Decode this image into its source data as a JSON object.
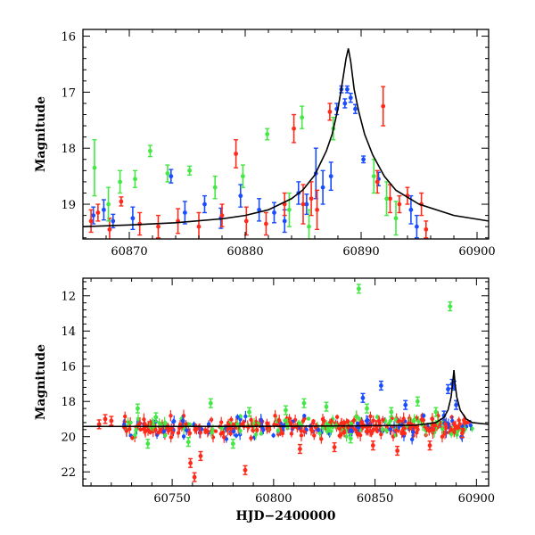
{
  "chart_data": [
    {
      "type": "scatter",
      "title": "",
      "xlabel": "",
      "ylabel": "Magnitude",
      "xlim": [
        60866,
        60901
      ],
      "ylim": [
        19.62,
        15.88
      ],
      "y_inverted": true,
      "xticks": [
        60870,
        60880,
        60890,
        60900
      ],
      "yticks": [
        16,
        17,
        18,
        19
      ],
      "grid": false,
      "colors": {
        "blue": "#1a4cff",
        "red": "#ff2a1a",
        "green": "#44e844",
        "model": "#000000"
      },
      "model_curve": {
        "name": "",
        "x": [
          60866,
          60870,
          60874,
          60878,
          60880,
          60882,
          60884,
          60885,
          60886,
          60887,
          60887.5,
          60888,
          60888.4,
          60888.7,
          60888.9,
          60889.1,
          60889.4,
          60889.8,
          60890.3,
          60891,
          60892,
          60893,
          60895,
          60898,
          60901
        ],
        "y": [
          19.4,
          19.37,
          19.33,
          19.26,
          19.2,
          19.1,
          18.9,
          18.74,
          18.48,
          18.05,
          17.75,
          17.3,
          16.8,
          16.4,
          16.22,
          16.45,
          16.95,
          17.35,
          17.75,
          18.12,
          18.5,
          18.75,
          19.0,
          19.2,
          19.3
        ]
      },
      "series": [
        {
          "color": "blue",
          "points": [
            {
              "x": 60866.9,
              "y": 19.2,
              "e": 0.15
            },
            {
              "x": 60867.8,
              "y": 19.1,
              "e": 0.18
            },
            {
              "x": 60868.6,
              "y": 19.3,
              "e": 0.12
            },
            {
              "x": 60870.3,
              "y": 19.25,
              "e": 0.2
            },
            {
              "x": 60873.6,
              "y": 18.5,
              "e": 0.12
            },
            {
              "x": 60874.8,
              "y": 19.15,
              "e": 0.2
            },
            {
              "x": 60876.5,
              "y": 19.0,
              "e": 0.15
            },
            {
              "x": 60877.9,
              "y": 19.25,
              "e": 0.18
            },
            {
              "x": 60879.6,
              "y": 18.85,
              "e": 0.2
            },
            {
              "x": 60881.2,
              "y": 19.1,
              "e": 0.2
            },
            {
              "x": 60882.5,
              "y": 19.15,
              "e": 0.18
            },
            {
              "x": 60883.4,
              "y": 19.3,
              "e": 0.2
            },
            {
              "x": 60884.6,
              "y": 18.8,
              "e": 0.2
            },
            {
              "x": 60885.3,
              "y": 19.0,
              "e": 0.18
            },
            {
              "x": 60886.1,
              "y": 18.45,
              "e": 0.45
            },
            {
              "x": 60886.7,
              "y": 18.7,
              "e": 0.3
            },
            {
              "x": 60887.4,
              "y": 18.5,
              "e": 0.25
            },
            {
              "x": 60887.9,
              "y": 17.3,
              "e": 0.1
            },
            {
              "x": 60888.3,
              "y": 16.95,
              "e": 0.06
            },
            {
              "x": 60888.6,
              "y": 17.2,
              "e": 0.08
            },
            {
              "x": 60888.8,
              "y": 16.95,
              "e": 0.06
            },
            {
              "x": 60889.1,
              "y": 17.1,
              "e": 0.08
            },
            {
              "x": 60889.5,
              "y": 17.3,
              "e": 0.08
            },
            {
              "x": 60890.2,
              "y": 18.2,
              "e": 0.06
            },
            {
              "x": 60891.5,
              "y": 18.55,
              "e": 0.12
            },
            {
              "x": 60894.3,
              "y": 19.1,
              "e": 0.25
            },
            {
              "x": 60894.8,
              "y": 19.4,
              "e": 0.2
            }
          ]
        },
        {
          "color": "red",
          "points": [
            {
              "x": 60866.7,
              "y": 19.3,
              "e": 0.2
            },
            {
              "x": 60867.3,
              "y": 19.15,
              "e": 0.15
            },
            {
              "x": 60868.3,
              "y": 19.45,
              "e": 0.2
            },
            {
              "x": 60869.3,
              "y": 18.95,
              "e": 0.08
            },
            {
              "x": 60870.9,
              "y": 19.35,
              "e": 0.2
            },
            {
              "x": 60872.5,
              "y": 19.4,
              "e": 0.2
            },
            {
              "x": 60874.2,
              "y": 19.3,
              "e": 0.22
            },
            {
              "x": 60876.0,
              "y": 19.4,
              "e": 0.25
            },
            {
              "x": 60878.0,
              "y": 19.2,
              "e": 0.2
            },
            {
              "x": 60879.2,
              "y": 18.1,
              "e": 0.25
            },
            {
              "x": 60880.1,
              "y": 19.3,
              "e": 0.25
            },
            {
              "x": 60881.8,
              "y": 19.35,
              "e": 0.2
            },
            {
              "x": 60883.4,
              "y": 19.0,
              "e": 0.2
            },
            {
              "x": 60884.2,
              "y": 17.65,
              "e": 0.25
            },
            {
              "x": 60885.0,
              "y": 19.0,
              "e": 0.35
            },
            {
              "x": 60885.7,
              "y": 18.9,
              "e": 0.3
            },
            {
              "x": 60886.2,
              "y": 19.1,
              "e": 0.35
            },
            {
              "x": 60887.3,
              "y": 17.35,
              "e": 0.15
            },
            {
              "x": 60891.4,
              "y": 18.6,
              "e": 0.2
            },
            {
              "x": 60891.9,
              "y": 17.25,
              "e": 0.35
            },
            {
              "x": 60892.5,
              "y": 18.9,
              "e": 0.25
            },
            {
              "x": 60893.3,
              "y": 19.0,
              "e": 0.15
            },
            {
              "x": 60894.0,
              "y": 18.85,
              "e": 0.15
            },
            {
              "x": 60895.2,
              "y": 19.0,
              "e": 0.2
            },
            {
              "x": 60895.6,
              "y": 19.45,
              "e": 0.15
            }
          ]
        },
        {
          "color": "green",
          "points": [
            {
              "x": 60867.0,
              "y": 18.35,
              "e": 0.5
            },
            {
              "x": 60868.2,
              "y": 19.0,
              "e": 0.3
            },
            {
              "x": 60869.2,
              "y": 18.6,
              "e": 0.2
            },
            {
              "x": 60870.5,
              "y": 18.55,
              "e": 0.15
            },
            {
              "x": 60871.8,
              "y": 18.05,
              "e": 0.1
            },
            {
              "x": 60873.3,
              "y": 18.45,
              "e": 0.15
            },
            {
              "x": 60875.2,
              "y": 18.4,
              "e": 0.08
            },
            {
              "x": 60877.4,
              "y": 18.7,
              "e": 0.2
            },
            {
              "x": 60879.8,
              "y": 18.5,
              "e": 0.2
            },
            {
              "x": 60881.9,
              "y": 17.75,
              "e": 0.1
            },
            {
              "x": 60883.8,
              "y": 19.1,
              "e": 0.3
            },
            {
              "x": 60884.9,
              "y": 17.45,
              "e": 0.2
            },
            {
              "x": 60885.5,
              "y": 19.4,
              "e": 0.3
            },
            {
              "x": 60887.6,
              "y": 17.65,
              "e": 0.2
            },
            {
              "x": 60891.1,
              "y": 18.5,
              "e": 0.3
            },
            {
              "x": 60892.2,
              "y": 18.9,
              "e": 0.3
            },
            {
              "x": 60893.0,
              "y": 19.25,
              "e": 0.3
            }
          ]
        }
      ]
    },
    {
      "type": "scatter",
      "title": "",
      "xlabel": "HJD−2400000",
      "ylabel": "Magnitude",
      "xlim": [
        60706,
        60906
      ],
      "ylim": [
        22.8,
        11.0
      ],
      "y_inverted": true,
      "xticks": [
        60750,
        60800,
        60850,
        60900
      ],
      "yticks": [
        12,
        14,
        16,
        18,
        20,
        22
      ],
      "grid": false,
      "colors": {
        "blue": "#1a4cff",
        "red": "#ff2a1a",
        "green": "#44e844",
        "model": "#000000"
      },
      "model_curve": {
        "name": "",
        "x": [
          60706,
          60750,
          60800,
          60850,
          60870,
          60880,
          60884,
          60886,
          60887.5,
          60888.4,
          60888.9,
          60889.4,
          60890.3,
          60892,
          60895,
          60898,
          60906
        ],
        "y": [
          19.42,
          19.42,
          19.41,
          19.38,
          19.35,
          19.2,
          18.9,
          18.48,
          17.75,
          16.8,
          16.22,
          16.95,
          17.75,
          18.5,
          19.0,
          19.2,
          19.3
        ]
      },
      "series": [
        {
          "color": "green",
          "points": [
            {
              "x": 60733,
              "y": 18.4
            },
            {
              "x": 60742,
              "y": 18.9
            },
            {
              "x": 60769,
              "y": 18.1
            },
            {
              "x": 60788,
              "y": 18.6
            },
            {
              "x": 60806,
              "y": 18.5
            },
            {
              "x": 60815,
              "y": 18.1
            },
            {
              "x": 60826,
              "y": 18.3
            },
            {
              "x": 60842,
              "y": 11.6
            },
            {
              "x": 60846,
              "y": 18.4
            },
            {
              "x": 60858,
              "y": 18.6
            },
            {
              "x": 60871,
              "y": 18.0
            },
            {
              "x": 60880,
              "y": 18.6
            },
            {
              "x": 60887,
              "y": 12.6
            },
            {
              "x": 60738,
              "y": 20.4
            },
            {
              "x": 60758,
              "y": 20.3
            },
            {
              "x": 60780,
              "y": 20.4
            },
            {
              "x": 60838,
              "y": 20.1
            }
          ]
        },
        {
          "color": "blue",
          "points": [
            {
              "x": 60844,
              "y": 17.8
            },
            {
              "x": 60853,
              "y": 17.1
            },
            {
              "x": 60865,
              "y": 18.2
            },
            {
              "x": 60884,
              "y": 18.8
            },
            {
              "x": 60886,
              "y": 17.3
            },
            {
              "x": 60888,
              "y": 17.0
            },
            {
              "x": 60889,
              "y": 17.1
            },
            {
              "x": 60890,
              "y": 18.2
            }
          ]
        },
        {
          "color": "red",
          "points": [
            {
              "x": 60714,
              "y": 19.3
            },
            {
              "x": 60717,
              "y": 19.0
            },
            {
              "x": 60720,
              "y": 19.1
            },
            {
              "x": 60759,
              "y": 21.5
            },
            {
              "x": 60761,
              "y": 22.3
            },
            {
              "x": 60764,
              "y": 21.1
            },
            {
              "x": 60786,
              "y": 21.9
            },
            {
              "x": 60813,
              "y": 20.7
            },
            {
              "x": 60830,
              "y": 20.6
            },
            {
              "x": 60849,
              "y": 20.5
            },
            {
              "x": 60861,
              "y": 20.8
            },
            {
              "x": 60877,
              "y": 20.5
            },
            {
              "x": 60893,
              "y": 19.8
            }
          ]
        }
      ],
      "dense_band": {
        "x_range": [
          60726,
          60898
        ],
        "y_center": 19.45,
        "y_spread": 0.45,
        "note_free": true
      }
    }
  ]
}
